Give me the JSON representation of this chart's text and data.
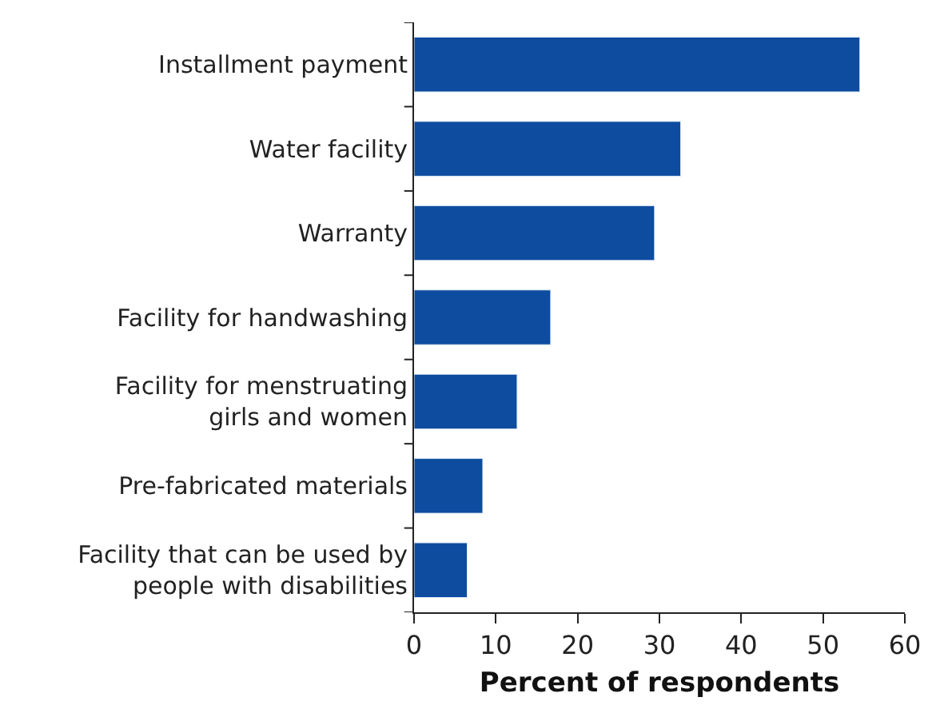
{
  "chart_data": {
    "type": "bar",
    "orientation": "horizontal",
    "xlabel": "Percent of respondents",
    "categories": [
      "Installment payment",
      "Water facility",
      "Warranty",
      "Facility for handwashing",
      "Facility for menstruating\ngirls and women",
      "Pre-fabricated materials",
      "Facility that can be used by\npeople with disabilities"
    ],
    "values": [
      54.5,
      32.6,
      29.4,
      16.7,
      12.6,
      8.4,
      6.5
    ],
    "color": "#0d4c9f",
    "xlim": [
      0,
      60
    ],
    "xticks": [
      0,
      10,
      20,
      30,
      40,
      50,
      60
    ]
  }
}
